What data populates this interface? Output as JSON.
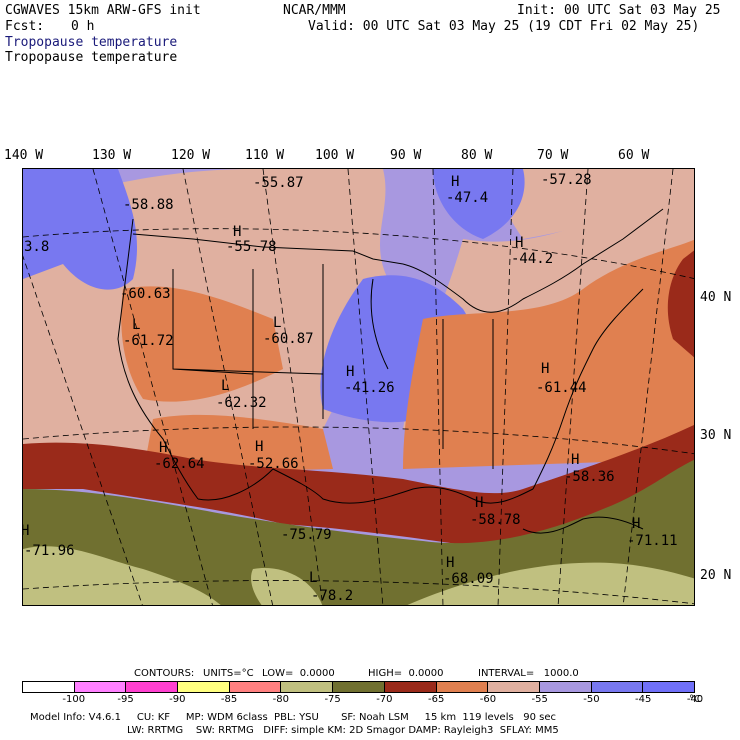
{
  "header": {
    "model": "CGWAVES 15km ARW-GFS init",
    "org": "NCAR/MMM",
    "init": "Init: 00 UTC Sat 03 May 25",
    "fcst_label": "Fcst:",
    "fcst_value": "0 h",
    "valid": "Valid: 00 UTC Sat 03 May 25 (19 CDT Fri 02 May 25)",
    "field_title": "Tropopause temperature",
    "field_subtitle": "Tropopause temperature"
  },
  "longitude_labels": [
    "140 W",
    "130 W",
    "120 W",
    "110 W",
    "100 W",
    "90 W",
    "80 W",
    "70 W",
    "60 W"
  ],
  "latitude_labels": [
    "40 N",
    "30 N",
    "20 N"
  ],
  "map_labels": {
    "l1": "-55.87",
    "l2": "-58.88",
    "l3": "H",
    "l4": "-55.78",
    "l5": "3.8",
    "l6": "H",
    "l7": "-47.4",
    "l8": "-57.28",
    "l9": "H",
    "l10": "-44.2",
    "l11": "-60.63",
    "l12": "L",
    "l13": "-61.72",
    "l14": "L",
    "l15": "-60.87",
    "l16": "L",
    "l17": "-62.32",
    "l18": "H",
    "l19": "-41.26",
    "l20": "H",
    "l21": "-61.44",
    "l22": "H",
    "l23": "-62.64",
    "l24": "H",
    "l25": "-52.66",
    "l26": "H",
    "l27": "-58.36",
    "l28": "H",
    "l29": "-58.78",
    "l30": "H",
    "l31": "-71.96",
    "l32": "-75.79",
    "l33": "H",
    "l34": "-71.11",
    "l35": "H",
    "l36": "-68.09",
    "l37": "L",
    "l38": "-78.2"
  },
  "contour_info": {
    "contours": "CONTOURS:",
    "units": "UNITS=°C",
    "low": "LOW=  0.0000",
    "high": "HIGH=  0.0000",
    "interval": "INTERVAL=   1000.0"
  },
  "colorbar": {
    "colors": [
      "#ffffff",
      "#ff80ff",
      "#ff40d0",
      "#ffff80",
      "#ff8080",
      "#c0c080",
      "#707030",
      "#9a2a1a",
      "#e08050",
      "#e0b0a0",
      "#a898e0",
      "#7878f0",
      "#7070f8"
    ],
    "ticks": [
      "-100",
      "-95",
      "-90",
      "-85",
      "-80",
      "-75",
      "-70",
      "-65",
      "-60",
      "-55",
      "-50",
      "-45",
      "-40",
      "°C"
    ]
  },
  "footer": {
    "line1": "Model Info: V4.6.1     CU: KF     MP: WDM 6class  PBL: YSU       SF: Noah LSM     15 km  119 levels   90 sec",
    "line2": "LW: RRTMG    SW: RRTMG   DIFF: simple KM: 2D Smagor DAMP: Rayleigh3  SFLAY: MM5"
  }
}
